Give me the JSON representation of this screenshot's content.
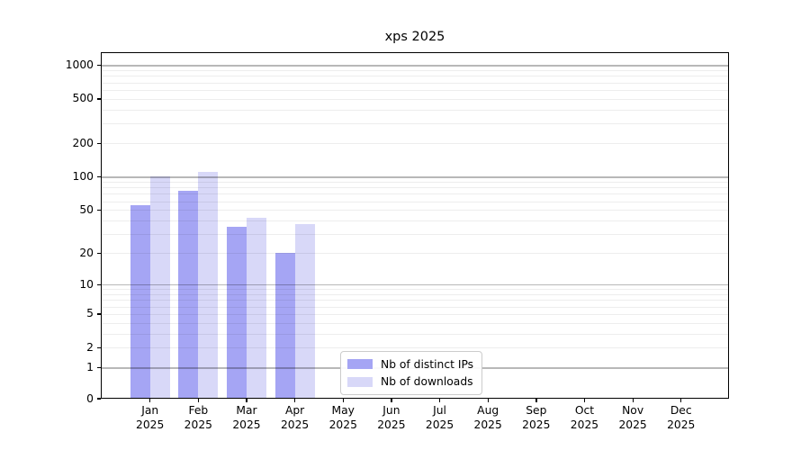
{
  "chart_data": {
    "type": "bar",
    "title": "xps 2025",
    "x": [
      "Jan",
      "Feb",
      "Mar",
      "Apr",
      "May",
      "Jun",
      "Jul",
      "Aug",
      "Sep",
      "Oct",
      "Nov",
      "Dec"
    ],
    "x_year": "2025",
    "series": [
      {
        "key": "ips",
        "name": "Nb of distinct IPs",
        "color": "#a5a5f4",
        "values": [
          55,
          75,
          35,
          20,
          null,
          null,
          null,
          null,
          null,
          null,
          null,
          null
        ]
      },
      {
        "key": "downloads",
        "name": "Nb of downloads",
        "color": "#d8d8f8",
        "values": [
          100,
          110,
          42,
          37,
          null,
          null,
          null,
          null,
          null,
          null,
          null,
          null
        ]
      }
    ],
    "yscale": "log1p",
    "ylim": [
      0,
      1310
    ],
    "y_ticks": [
      0,
      1,
      2,
      5,
      10,
      20,
      50,
      100,
      200,
      500,
      1000
    ],
    "grid": {
      "on": true,
      "major": [
        1,
        10,
        100,
        1000
      ],
      "minor": [
        2,
        3,
        4,
        5,
        6,
        7,
        8,
        9,
        20,
        30,
        40,
        50,
        60,
        70,
        80,
        90,
        200,
        300,
        400,
        500,
        600,
        700,
        800,
        900
      ],
      "major_color": "rgba(0,0,0,0.28)",
      "minor_color": "rgba(0,0,0,0.07)"
    },
    "legend_position": "inside-bottom-center"
  }
}
